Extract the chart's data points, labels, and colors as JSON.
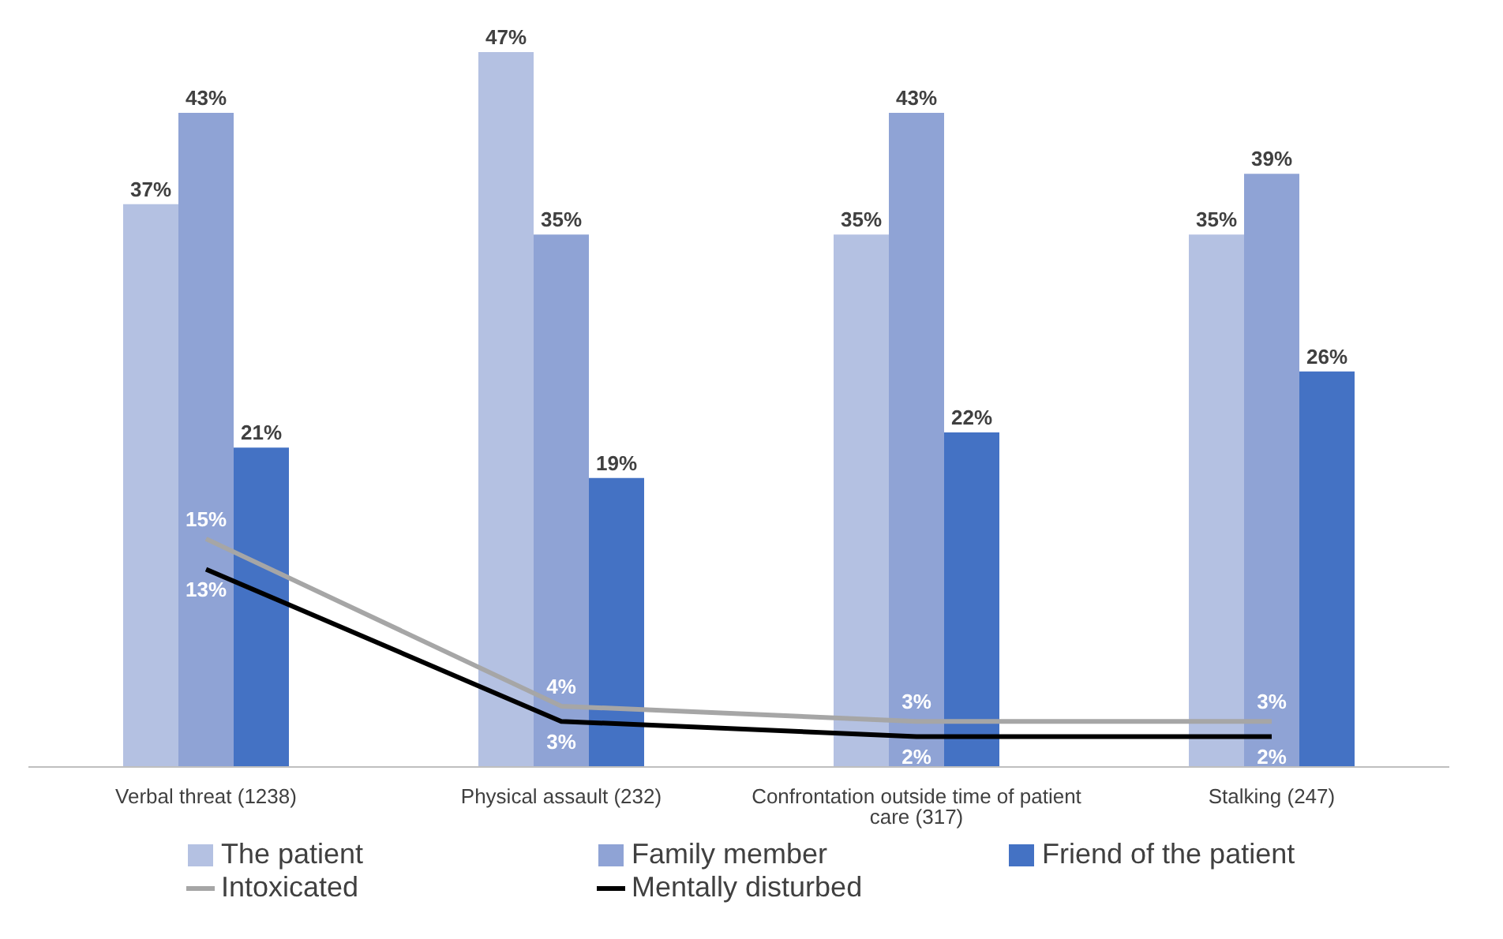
{
  "chart_data": {
    "type": "bar",
    "categories": [
      "Verbal threat (1238)",
      "Physical assault (232)",
      "Confrontation outside time of patient care (317)",
      "Stalking (247)"
    ],
    "series": [
      {
        "name": "The patient",
        "color": "#b4c1e2",
        "values": [
          37,
          47,
          35,
          35
        ],
        "value_labels": [
          "37%",
          "47%",
          "35%",
          "35%"
        ]
      },
      {
        "name": "Family member",
        "color": "#8fa3d5",
        "values": [
          43,
          35,
          43,
          39
        ],
        "value_labels": [
          "43%",
          "35%",
          "43%",
          "39%"
        ]
      },
      {
        "name": "Friend of the patient",
        "color": "#4472c4",
        "values": [
          21,
          19,
          22,
          26
        ],
        "value_labels": [
          "21%",
          "19%",
          "22%",
          "26%"
        ]
      },
      {
        "name": "Intoxicated",
        "type": "line",
        "color": "#a6a6a6",
        "values": [
          15,
          4,
          3,
          3
        ],
        "value_labels": [
          "15%",
          "4%",
          "3%",
          "3%"
        ]
      },
      {
        "name": "Mentally disturbed",
        "type": "line",
        "color": "#000000",
        "values": [
          13,
          3,
          2,
          2
        ],
        "value_labels": [
          "13%",
          "3%",
          "2%",
          "2%"
        ]
      }
    ],
    "legend": "bottom",
    "grid": false,
    "marker": "none"
  }
}
